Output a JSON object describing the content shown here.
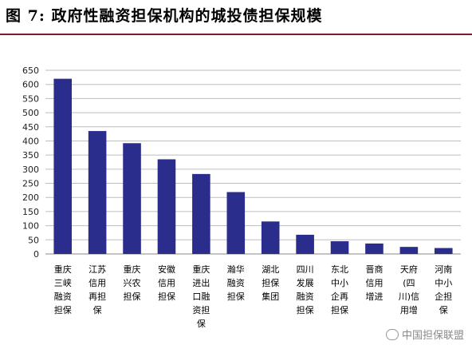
{
  "title": "图 7:  政府性融资担保机构的城投债担保规模",
  "watermark": "中国担保联盟",
  "colors": {
    "bar": "#2b2d8c",
    "grid": "#bdbdbd",
    "title_rule": "#7a1a2a"
  },
  "chart_data": {
    "type": "bar",
    "title": "",
    "xlabel": "",
    "ylabel": "",
    "ylim": [
      0,
      650
    ],
    "yticks": [
      0,
      50,
      100,
      150,
      200,
      250,
      300,
      350,
      400,
      450,
      500,
      550,
      600,
      650
    ],
    "grid": true,
    "categories": [
      "重庆三峡融资担保",
      "江苏信用再担保",
      "重庆兴农担保",
      "安徽信用担保",
      "重庆进出口融资担保",
      "瀚华融资担保",
      "湖北担保集团",
      "四川发展融资担保",
      "东北中小企再担保",
      "晋商信用增进",
      "天府(四川)信用增进",
      "河南中小企担保"
    ],
    "category_lines": [
      [
        "重庆",
        "三峡",
        "融资",
        "担保"
      ],
      [
        "江苏",
        "信用",
        "再担",
        "保"
      ],
      [
        "重庆",
        "兴农",
        "担保"
      ],
      [
        "安徽",
        "信用",
        "担保"
      ],
      [
        "重庆",
        "进出",
        "口融",
        "资担",
        "保"
      ],
      [
        "瀚华",
        "融资",
        "担保"
      ],
      [
        "湖北",
        "担保",
        "集团"
      ],
      [
        "四川",
        "发展",
        "融资",
        "担保"
      ],
      [
        "东北",
        "中小",
        "企再",
        "担保"
      ],
      [
        "晋商",
        "信用",
        "增进"
      ],
      [
        "天府",
        "(四",
        "川)信",
        "用增"
      ],
      [
        "河南",
        "中小",
        "企担",
        "保"
      ]
    ],
    "values": [
      620,
      435,
      392,
      335,
      283,
      219,
      115,
      68,
      45,
      37,
      25,
      21
    ]
  }
}
